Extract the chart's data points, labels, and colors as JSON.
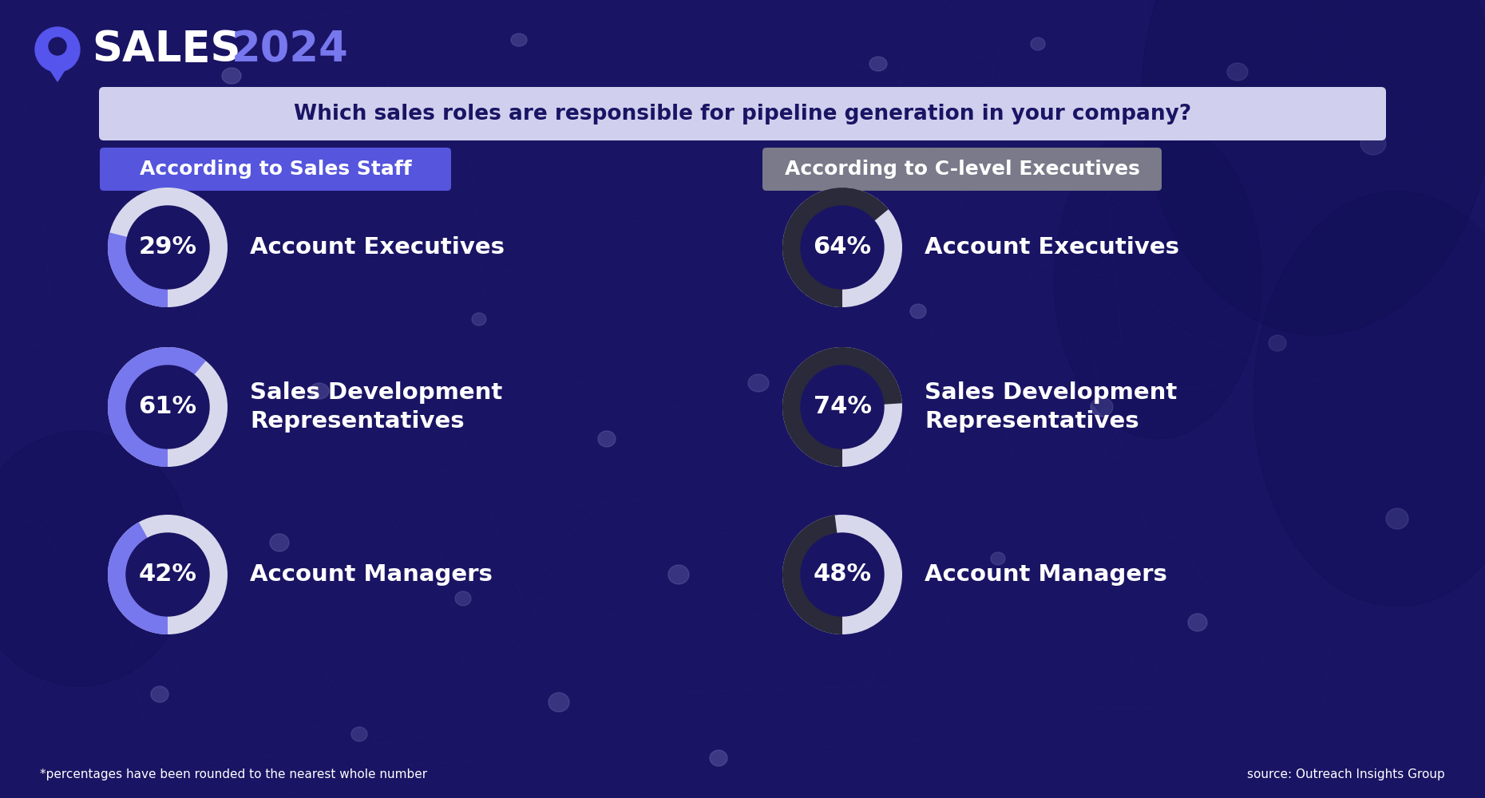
{
  "bg_color": "#1a1464",
  "title_question": "Which sales roles are responsible for pipeline generation in your company?",
  "title_bg": "#d0d0ee",
  "header_left": "According to Sales Staff",
  "header_left_bg": "#5555dd",
  "header_right": "According to C-level Executives",
  "header_right_bg": "#7a7a8a",
  "left_data": [
    {
      "pct": 29,
      "label": "Account Executives"
    },
    {
      "pct": 61,
      "label": "Sales Development\nRepresentatives"
    },
    {
      "pct": 42,
      "label": "Account Managers"
    }
  ],
  "right_data": [
    {
      "pct": 64,
      "label": "Account Executives"
    },
    {
      "pct": 74,
      "label": "Sales Development\nRepresentatives"
    },
    {
      "pct": 48,
      "label": "Account Managers"
    }
  ],
  "left_ring_color": "#7777ee",
  "left_ring_bg": "#d8d8ec",
  "right_ring_color": "#2a2a3a",
  "right_ring_bg": "#d8d8ec",
  "text_color": "#ffffff",
  "footnote": "*percentages have been rounded to the nearest whole number",
  "source": "source: Outreach Insights Group",
  "brand_text": "SALES",
  "brand_year": "2024",
  "brand_color_text": "#ffffff",
  "brand_color_year": "#7777ee",
  "logo_color": "#5555ee"
}
